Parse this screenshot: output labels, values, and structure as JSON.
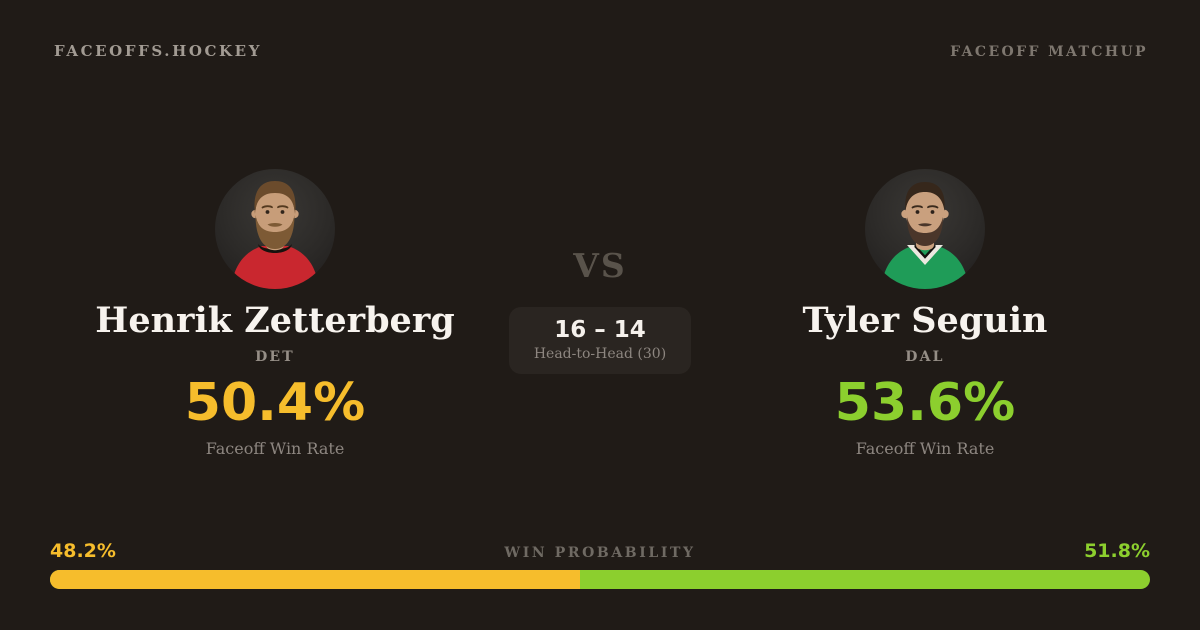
{
  "page": {
    "background": "#201b17"
  },
  "header": {
    "brand": "FACEOFFS.HOCKEY",
    "matchup_label": "FACEOFF MATCHUP"
  },
  "matchup": {
    "vs_label": "VS",
    "head_to_head": {
      "score": "16 – 14",
      "label": "Head-to-Head (30)"
    }
  },
  "players": [
    {
      "name": "Henrik Zetterberg",
      "team": "DET",
      "win_rate": "50.4%",
      "win_rate_label": "Faceoff Win Rate",
      "accent": "#f6bd2c",
      "avatar": {
        "jersey": "#c9272f",
        "collar": "#17120e",
        "skin": "#c79d79",
        "hair": "#6b4b2c",
        "beard": "#7d5a35"
      }
    },
    {
      "name": "Tyler Seguin",
      "team": "DAL",
      "win_rate": "53.6%",
      "win_rate_label": "Faceoff Win Rate",
      "accent": "#8ccf2e",
      "avatar": {
        "jersey": "#1f9c58",
        "collar": "#ece8e0",
        "skin": "#c9a07e",
        "hair": "#36271b",
        "beard": "#4a362a"
      }
    }
  ],
  "win_probability": {
    "label": "WIN PROBABILITY",
    "left_label": "48.2%",
    "right_label": "51.8%",
    "left_value": 48.2,
    "right_value": 51.8,
    "left_color": "#f6bd2c",
    "right_color": "#8ccf2e"
  }
}
